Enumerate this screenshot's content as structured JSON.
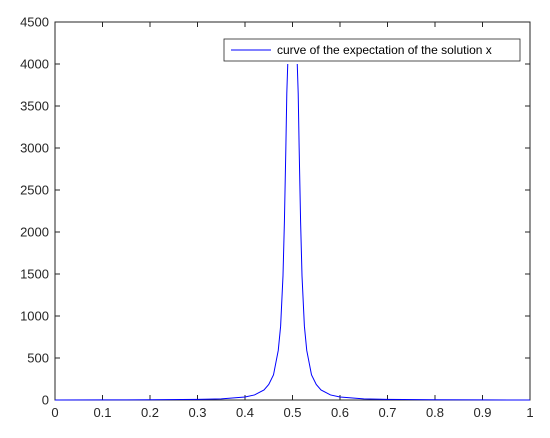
{
  "chart_data": {
    "type": "line",
    "title": "",
    "xlabel": "",
    "ylabel": "",
    "xlim": [
      0,
      1
    ],
    "ylim": [
      0,
      4500
    ],
    "xticks": [
      0,
      0.1,
      0.2,
      0.3,
      0.4,
      0.5,
      0.6,
      0.7,
      0.8,
      0.9,
      1
    ],
    "xtick_labels": [
      "0",
      "0.1",
      "0.2",
      "0.3",
      "0.4",
      "0.5",
      "0.6",
      "0.7",
      "0.8",
      "0.9",
      "1"
    ],
    "yticks": [
      0,
      500,
      1000,
      1500,
      2000,
      2500,
      3000,
      3500,
      4000,
      4500
    ],
    "ytick_labels": [
      "0",
      "500",
      "1000",
      "1500",
      "2000",
      "2500",
      "3000",
      "3500",
      "4000",
      "4500"
    ],
    "grid": false,
    "legend_position": "top-right",
    "series": [
      {
        "name": "curve of the expectation of the solution x",
        "color": "#0000ff",
        "segments": [
          {
            "x": [
              0.0,
              0.1,
              0.2,
              0.3,
              0.35,
              0.4,
              0.42,
              0.44,
              0.45,
              0.46,
              0.47,
              0.475,
              0.48,
              0.483,
              0.486,
              0.488,
              0.49
            ],
            "y": [
              0.5,
              1,
              3,
              7,
              14,
              36,
              60,
              120,
              185,
              300,
              590,
              880,
              1480,
              2130,
              3000,
              3650,
              4000
            ]
          },
          {
            "x": [
              0.51,
              0.512,
              0.514,
              0.517,
              0.52,
              0.525,
              0.53,
              0.54,
              0.55,
              0.56,
              0.58,
              0.6,
              0.65,
              0.7,
              0.8,
              0.9,
              1.0
            ],
            "y": [
              4000,
              3650,
              3000,
              2130,
              1480,
              880,
              590,
              300,
              185,
              120,
              60,
              36,
              14,
              7,
              3,
              1,
              0.5
            ]
          }
        ]
      }
    ]
  }
}
